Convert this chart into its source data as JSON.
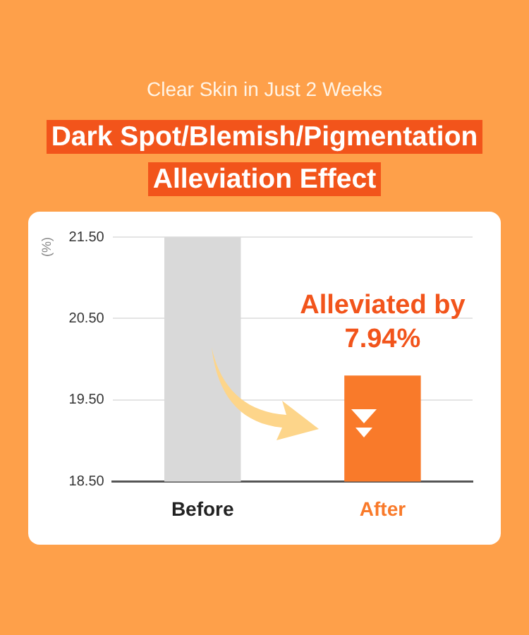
{
  "chart_data": {
    "type": "bar",
    "subtitle": "Clear Skin in Just 2 Weeks",
    "title": "Dark Spot/Blemish/Pigmentation Alleviation Effect",
    "ylabel": "(%)",
    "categories": [
      "Before",
      "After"
    ],
    "values": [
      21.5,
      19.8
    ],
    "colors": [
      "#d9d9d9",
      "#f97a2a"
    ],
    "ylim": [
      18.5,
      21.5
    ],
    "yticks": [
      {
        "value": 18.5,
        "label": "18.50"
      },
      {
        "value": 19.5,
        "label": "19.50"
      },
      {
        "value": 20.5,
        "label": "20.50"
      },
      {
        "value": 21.5,
        "label": "21.50"
      }
    ],
    "grid": "y",
    "annotations": [
      "Alleviated by 7.94%"
    ]
  }
}
